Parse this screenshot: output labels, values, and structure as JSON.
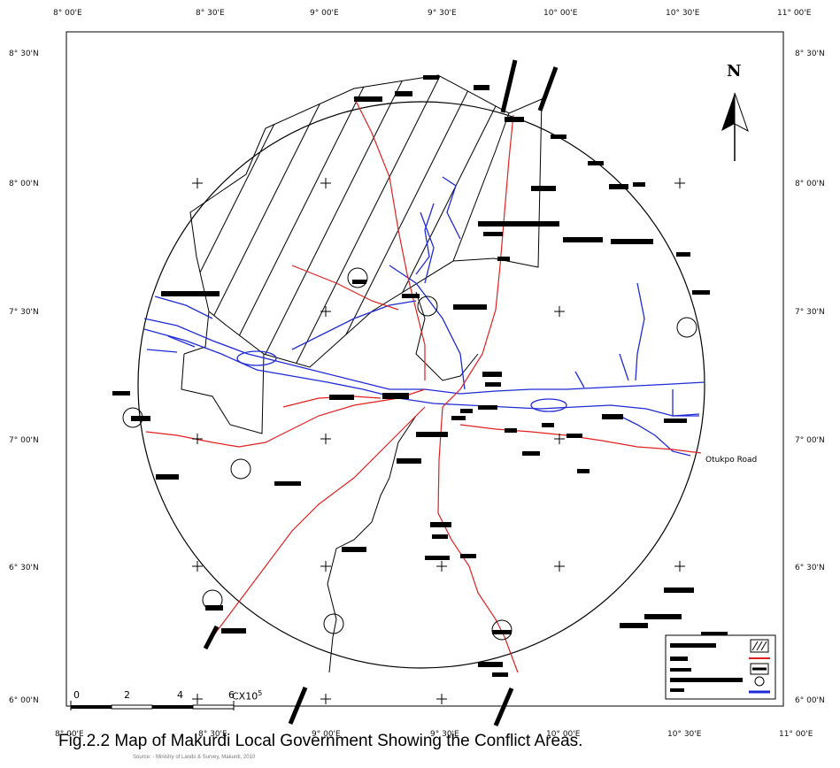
{
  "map": {
    "top_ticks": [
      "8° 00'E",
      "8° 30'E",
      "9° 00'E",
      "9° 30'E",
      "10° 00'E",
      "10° 30'E",
      "11° 00'E"
    ],
    "bottom_ticks": [
      "8° 00'E",
      "8° 30'E",
      "9° 00'E",
      "9° 30'E",
      "10° 00'E",
      "10° 30'E",
      "11° 00'E"
    ],
    "left_ticks": [
      "8° 30'N",
      "8° 00'N",
      "7° 30'N",
      "7° 00'N",
      "6° 30'N",
      "6° 00'N"
    ],
    "right_ticks": [
      "8° 30'N",
      "8° 00'N",
      "7° 30'N",
      "7° 00'N",
      "6° 30'N",
      "6° 00'N"
    ],
    "north_arrow_label": "N",
    "road_label": "Otukpo Road",
    "scale_bar": {
      "labels": [
        "0",
        "2",
        "4",
        "6"
      ],
      "unit": "CX10",
      "exponent": "5"
    },
    "caption": "Fig.2.2  Map of Makurdi Local Government Showing the Conflict Areas.",
    "source": "Source: - Ministry of Lands & Survey, Makurdi, 2010",
    "colors": {
      "river": "#1f2bd6",
      "road": "#e02020",
      "boundary": "#000000"
    }
  }
}
